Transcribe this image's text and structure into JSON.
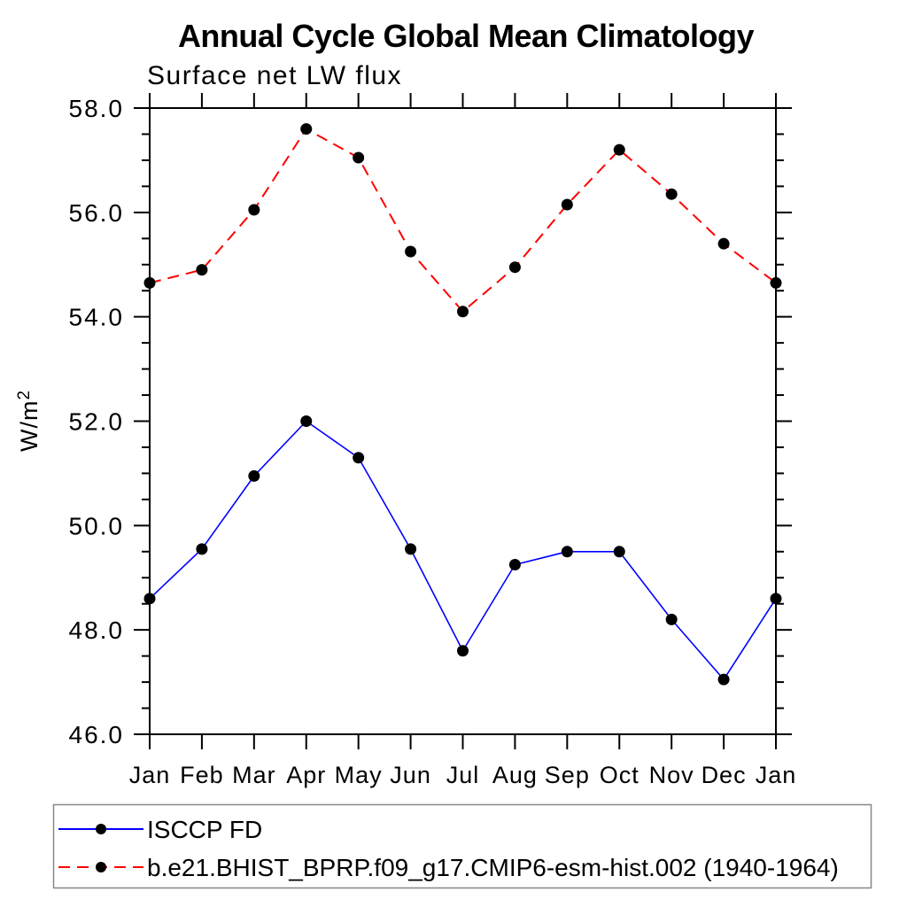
{
  "chart_data": {
    "type": "line",
    "title": "Annual Cycle Global Mean Climatology",
    "subtitle": "Surface net LW flux",
    "ylabel": "W/m²",
    "x_categories": [
      "Jan",
      "Feb",
      "Mar",
      "Apr",
      "May",
      "Jun",
      "Jul",
      "Aug",
      "Sep",
      "Oct",
      "Nov",
      "Dec",
      "Jan"
    ],
    "ylim": [
      46.0,
      58.0
    ],
    "ytick_values": [
      46,
      48,
      50,
      52,
      54,
      56,
      58
    ],
    "ytick_labels": [
      "46.0",
      "48.0",
      "50.0",
      "52.0",
      "54.0",
      "56.0",
      "58.0"
    ],
    "ytick_minor_step": 0.5,
    "grid": false,
    "legend_position": "bottom-left",
    "axis_color": "#000000",
    "legend_border_color": "#878787",
    "series": [
      {
        "name": "ISCCP FD",
        "color": "#0000ff",
        "line_style": "solid",
        "marker": "filled-circle",
        "marker_color": "#000000",
        "values": [
          48.6,
          49.55,
          50.95,
          52.0,
          51.3,
          49.55,
          47.6,
          49.25,
          49.5,
          49.5,
          48.2,
          47.05,
          48.6
        ]
      },
      {
        "name": "b.e21.BHIST_BPRP.f09_g17.CMIP6-esm-hist.002 (1940-1964)",
        "color": "#ff0000",
        "line_style": "dashed",
        "marker": "filled-circle",
        "marker_color": "#000000",
        "values": [
          54.65,
          54.9,
          56.05,
          57.6,
          57.05,
          55.25,
          54.1,
          54.95,
          56.15,
          57.2,
          56.35,
          55.4,
          54.65
        ]
      }
    ]
  }
}
